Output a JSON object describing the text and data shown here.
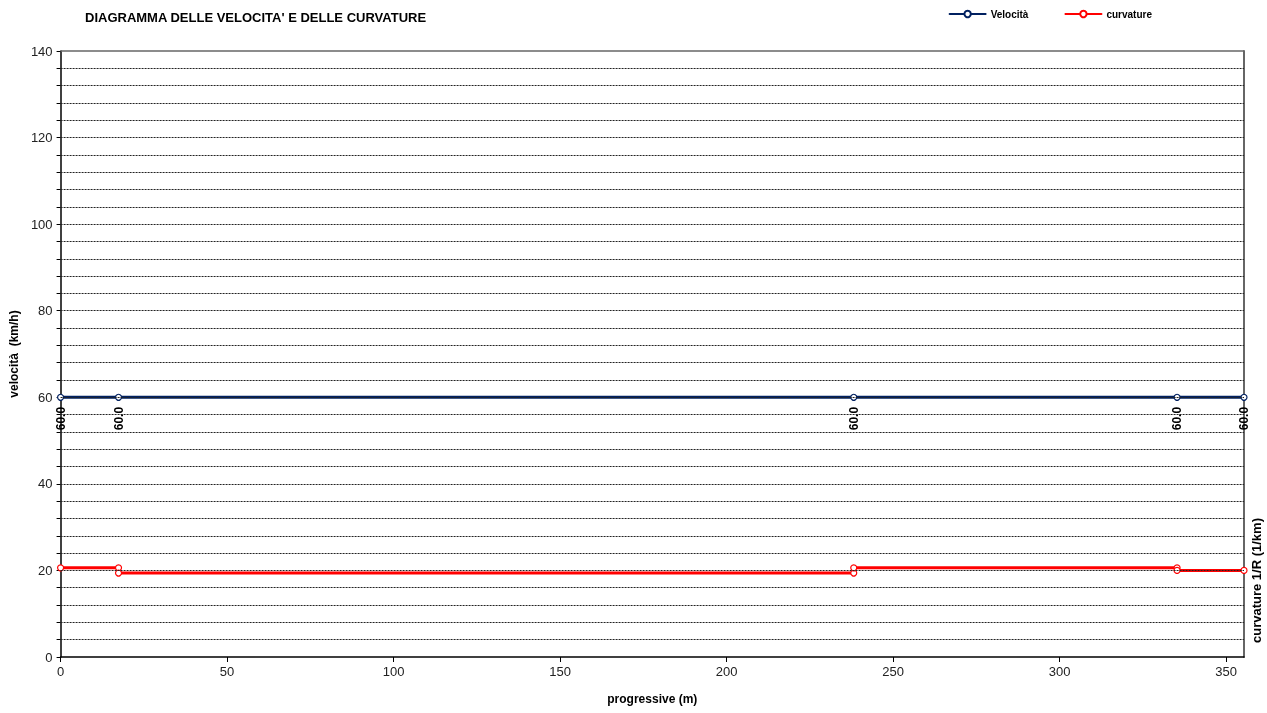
{
  "chart_data": {
    "type": "line",
    "title": "DIAGRAMMA DELLE VELOCITA' E DELLE CURVATURE",
    "xlabel": "progressive (m)",
    "ylabel": "velocità  (km/h)",
    "y2label": "curvature 1/R (1/km)",
    "xlim": [
      0,
      355.4
    ],
    "xticks": [
      0,
      50,
      100,
      150,
      200,
      250,
      300,
      350
    ],
    "ylim": [
      0,
      140
    ],
    "yticks": [
      0,
      {
        "value": 4,
        "label": null
      },
      {
        "value": 8,
        "label": null
      },
      {
        "value": 12,
        "label": null
      },
      {
        "value": 16,
        "label": null
      },
      20,
      {
        "value": 24,
        "label": null
      },
      {
        "value": 28,
        "label": null
      },
      {
        "value": 32,
        "label": null
      },
      {
        "value": 36,
        "label": null
      },
      40,
      {
        "value": 44,
        "label": null
      },
      {
        "value": 48,
        "label": null
      },
      {
        "value": 52,
        "label": null
      },
      {
        "value": 56,
        "label": null
      },
      60,
      {
        "value": 64,
        "label": null
      },
      {
        "value": 68,
        "label": null
      },
      {
        "value": 72,
        "label": null
      },
      {
        "value": 76,
        "label": null
      },
      80,
      {
        "value": 84,
        "label": null
      },
      {
        "value": 88,
        "label": null
      },
      {
        "value": 92,
        "label": null
      },
      {
        "value": 96,
        "label": null
      },
      100,
      {
        "value": 104,
        "label": null
      },
      {
        "value": 108,
        "label": null
      },
      {
        "value": 112,
        "label": null
      },
      {
        "value": 116,
        "label": null
      },
      120,
      {
        "value": 124,
        "label": null
      },
      {
        "value": 128,
        "label": null
      },
      {
        "value": 132,
        "label": null
      },
      {
        "value": 136,
        "label": null
      },
      140
    ],
    "grid": "y",
    "legend": "top right",
    "marker": "circle",
    "line_style": "solid",
    "series": [
      {
        "name": "Velocità",
        "color": "#002060",
        "x": [
          0,
          17.4,
          238.2,
          335.3,
          355.4
        ],
        "values": [
          60,
          60,
          60,
          60,
          60
        ],
        "value_labels": [
          "60.0",
          "60.0",
          "60.0",
          "60.0",
          "60.0"
        ]
      },
      {
        "name": "curvature",
        "color": "#ff0000",
        "x": [
          0,
          17.4,
          17.4,
          238.2,
          238.2,
          335.3,
          335.3,
          355.4
        ],
        "values": [
          20.6,
          20.6,
          19.4,
          19.4,
          20.6,
          20.6,
          20.0,
          20.0
        ]
      }
    ]
  }
}
